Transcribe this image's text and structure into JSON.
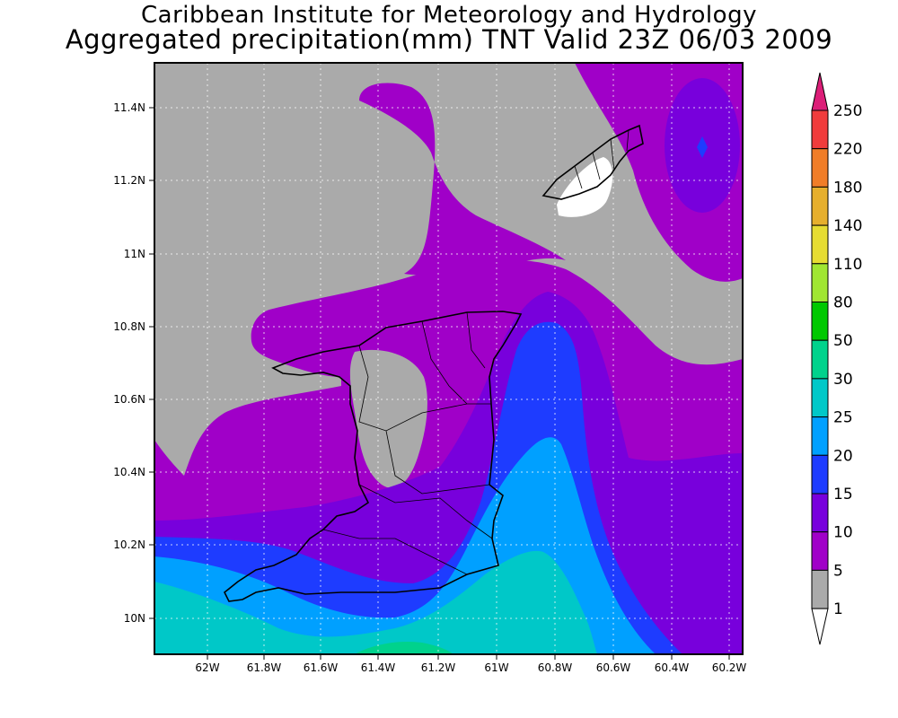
{
  "title": {
    "line1": "Caribbean Institute for Meteorology and Hydrology",
    "line2": "Aggregated precipitation(mm) TNT Valid 23Z 06/03 2009"
  },
  "axes": {
    "x_ticks": [
      "62W",
      "61.8W",
      "61.6W",
      "61.4W",
      "61.2W",
      "61W",
      "60.8W",
      "60.6W",
      "60.4W",
      "60.2W"
    ],
    "y_ticks": [
      "11.4N",
      "11.2N",
      "11N",
      "10.8N",
      "10.6N",
      "10.4N",
      "10.2N",
      "10N"
    ]
  },
  "colorbar": {
    "labels": [
      "250",
      "220",
      "180",
      "140",
      "110",
      "80",
      "50",
      "30",
      "25",
      "20",
      "15",
      "10",
      "5",
      "1"
    ],
    "colors": [
      "#dc1e78",
      "#f03c3c",
      "#f07d28",
      "#e6af2d",
      "#e6dc32",
      "#a0e632",
      "#00c800",
      "#00d28c",
      "#00c8c8",
      "#00a0ff",
      "#1e3cff",
      "#7800dc",
      "#a000c8",
      "#aaaaaa",
      "#ffffff"
    ]
  },
  "map_colors": {
    "dry": "#aaaaaa",
    "c5": "#a000c8",
    "c10": "#7800dc",
    "c15": "#1e3cff",
    "c20": "#00a0ff",
    "c25": "#00c8c8",
    "c30": "#00d28c",
    "c1": "#ffffff"
  }
}
